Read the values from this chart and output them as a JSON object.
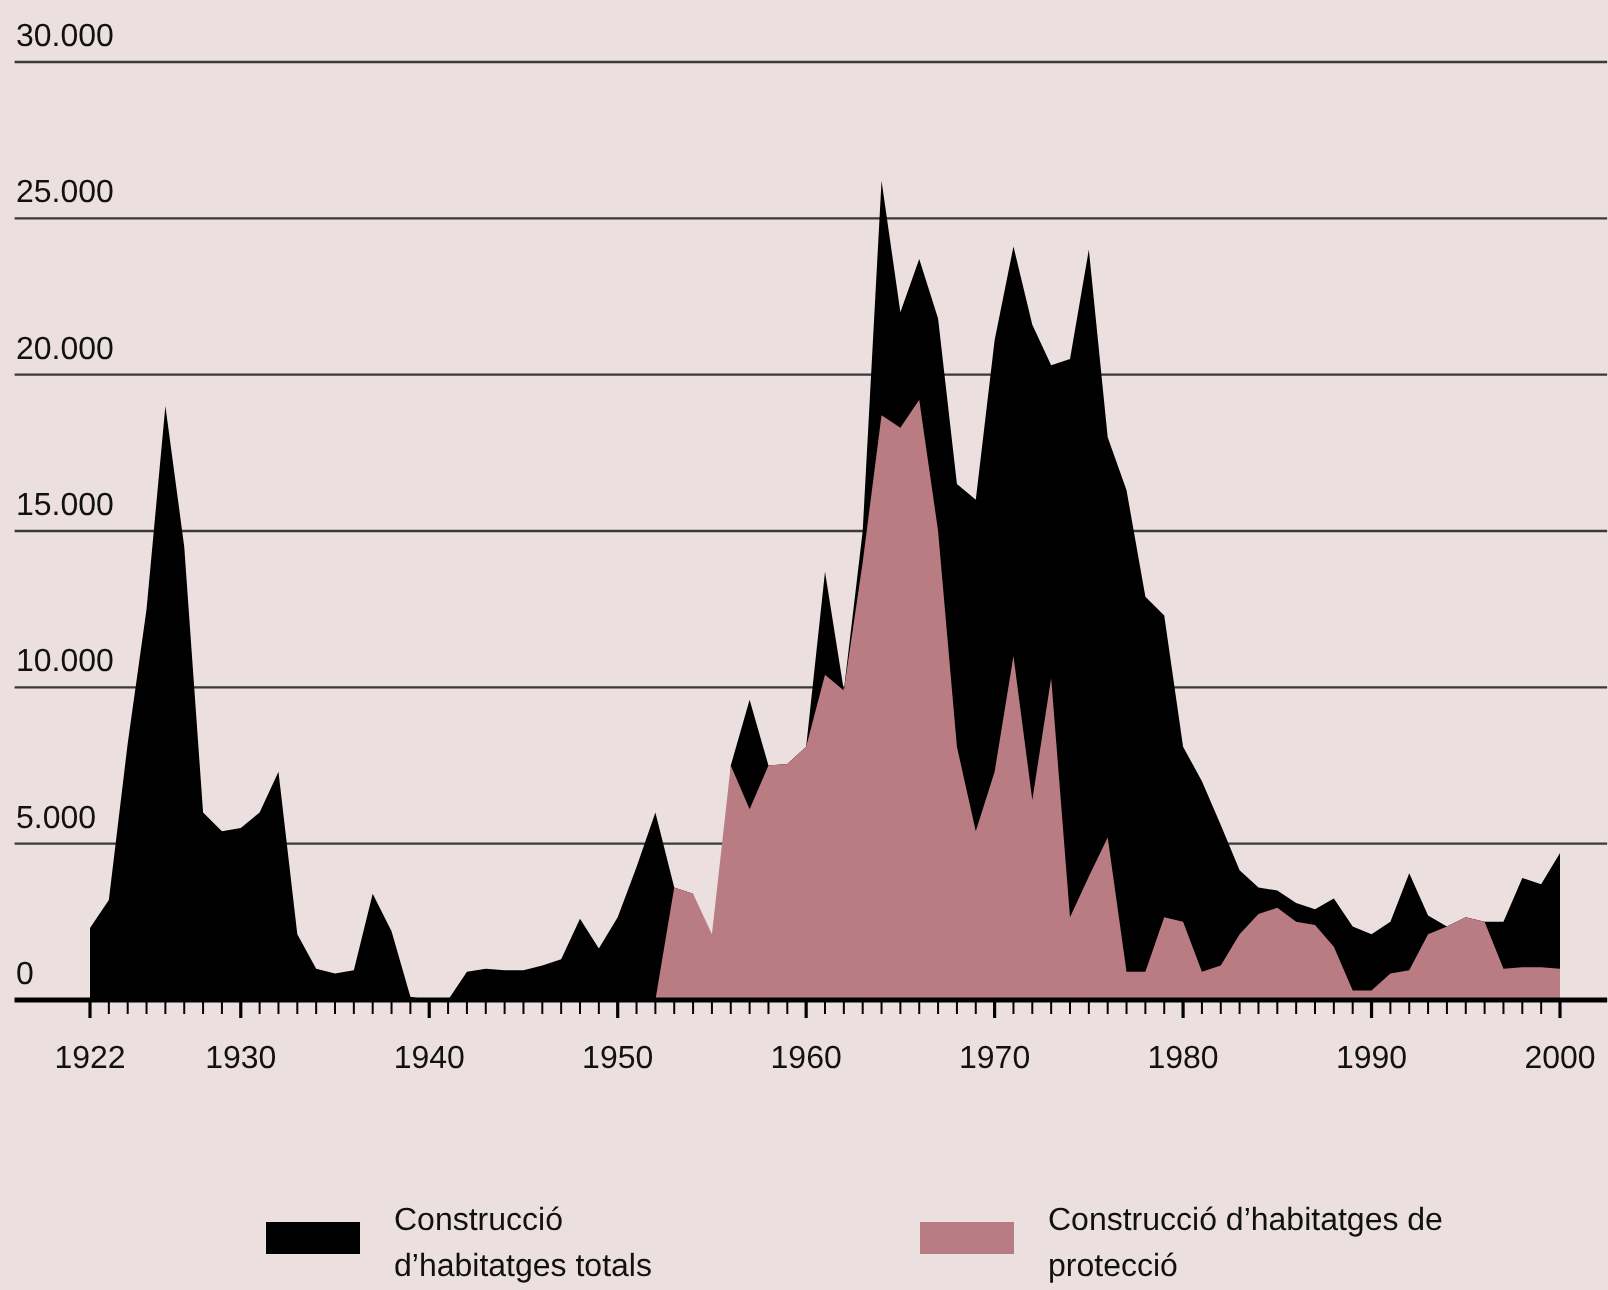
{
  "chart_data": {
    "type": "area",
    "x": [
      1922,
      1923,
      1924,
      1925,
      1926,
      1927,
      1928,
      1929,
      1930,
      1931,
      1932,
      1933,
      1934,
      1935,
      1936,
      1937,
      1938,
      1939,
      1940,
      1941,
      1942,
      1943,
      1944,
      1945,
      1946,
      1947,
      1948,
      1949,
      1950,
      1951,
      1952,
      1953,
      1954,
      1955,
      1956,
      1957,
      1958,
      1959,
      1960,
      1961,
      1962,
      1963,
      1964,
      1965,
      1966,
      1967,
      1968,
      1969,
      1970,
      1971,
      1972,
      1973,
      1974,
      1975,
      1976,
      1977,
      1978,
      1979,
      1980,
      1981,
      1982,
      1983,
      1984,
      1985,
      1986,
      1987,
      1988,
      1989,
      1990,
      1991,
      1992,
      1993,
      1994,
      1995,
      1996,
      1997,
      1998,
      1999,
      2000
    ],
    "series": [
      {
        "name": "Construcció d’habitatges totals",
        "color": "#000000",
        "values": [
          2300,
          3200,
          8200,
          12500,
          19000,
          14500,
          6000,
          5400,
          5500,
          6000,
          7300,
          2100,
          1000,
          850,
          950,
          3400,
          2200,
          100,
          0,
          0,
          900,
          1000,
          950,
          950,
          1100,
          1300,
          2600,
          1650,
          2650,
          4250,
          6000,
          3600,
          3400,
          null,
          7500,
          9600,
          7500,
          7550,
          8100,
          13700,
          9900,
          15000,
          26200,
          22000,
          23700,
          21800,
          16500,
          16000,
          21100,
          24100,
          21600,
          20300,
          20500,
          24000,
          18000,
          16300,
          12900,
          12300,
          8100,
          7000,
          5600,
          4150,
          3600,
          3500,
          3100,
          2900,
          3250,
          2350,
          2100,
          2500,
          4050,
          2700,
          2350,
          2650,
          2500,
          2500,
          3900,
          3700,
          4700
        ]
      },
      {
        "name": "Construcció d’habitatges de protecció",
        "color": "#b97c83",
        "values": [
          null,
          null,
          null,
          null,
          null,
          null,
          null,
          null,
          null,
          null,
          null,
          null,
          null,
          null,
          null,
          null,
          null,
          null,
          null,
          null,
          null,
          null,
          null,
          null,
          null,
          null,
          null,
          null,
          null,
          null,
          0,
          3600,
          3400,
          2100,
          7500,
          6100,
          7500,
          7550,
          8100,
          10400,
          9900,
          14000,
          18700,
          18300,
          19200,
          15000,
          8100,
          5400,
          7300,
          11000,
          6400,
          10300,
          2650,
          3950,
          5200,
          900,
          900,
          2650,
          2500,
          900,
          1100,
          2100,
          2750,
          2950,
          2500,
          2400,
          1700,
          300,
          300,
          850,
          950,
          2100,
          2350,
          2650,
          2500,
          1000,
          1050,
          1050,
          1000
        ]
      }
    ],
    "xlim": [
      1918,
      2002.5
    ],
    "xticks": [
      1922,
      {
        "value": 1923,
        "label": null
      },
      {
        "value": 1924,
        "label": null
      },
      {
        "value": 1925,
        "label": null
      },
      {
        "value": 1926,
        "label": null
      },
      {
        "value": 1927,
        "label": null
      },
      {
        "value": 1928,
        "label": null
      },
      {
        "value": 1929,
        "label": null
      },
      1930,
      {
        "value": 1931,
        "label": null
      },
      {
        "value": 1932,
        "label": null
      },
      {
        "value": 1933,
        "label": null
      },
      {
        "value": 1934,
        "label": null
      },
      {
        "value": 1935,
        "label": null
      },
      {
        "value": 1936,
        "label": null
      },
      {
        "value": 1937,
        "label": null
      },
      {
        "value": 1938,
        "label": null
      },
      {
        "value": 1939,
        "label": null
      },
      1940,
      {
        "value": 1941,
        "label": null
      },
      {
        "value": 1942,
        "label": null
      },
      {
        "value": 1943,
        "label": null
      },
      {
        "value": 1944,
        "label": null
      },
      {
        "value": 1945,
        "label": null
      },
      {
        "value": 1946,
        "label": null
      },
      {
        "value": 1947,
        "label": null
      },
      {
        "value": 1948,
        "label": null
      },
      {
        "value": 1949,
        "label": null
      },
      1950,
      {
        "value": 1951,
        "label": null
      },
      {
        "value": 1952,
        "label": null
      },
      {
        "value": 1953,
        "label": null
      },
      {
        "value": 1954,
        "label": null
      },
      {
        "value": 1955,
        "label": null
      },
      {
        "value": 1956,
        "label": null
      },
      {
        "value": 1957,
        "label": null
      },
      {
        "value": 1958,
        "label": null
      },
      {
        "value": 1959,
        "label": null
      },
      1960,
      {
        "value": 1961,
        "label": null
      },
      {
        "value": 1962,
        "label": null
      },
      {
        "value": 1963,
        "label": null
      },
      {
        "value": 1964,
        "label": null
      },
      {
        "value": 1965,
        "label": null
      },
      {
        "value": 1966,
        "label": null
      },
      {
        "value": 1967,
        "label": null
      },
      {
        "value": 1968,
        "label": null
      },
      {
        "value": 1969,
        "label": null
      },
      1970,
      {
        "value": 1971,
        "label": null
      },
      {
        "value": 1972,
        "label": null
      },
      {
        "value": 1973,
        "label": null
      },
      {
        "value": 1974,
        "label": null
      },
      {
        "value": 1975,
        "label": null
      },
      {
        "value": 1976,
        "label": null
      },
      {
        "value": 1977,
        "label": null
      },
      {
        "value": 1978,
        "label": null
      },
      {
        "value": 1979,
        "label": null
      },
      1980,
      {
        "value": 1981,
        "label": null
      },
      {
        "value": 1982,
        "label": null
      },
      {
        "value": 1983,
        "label": null
      },
      {
        "value": 1984,
        "label": null
      },
      {
        "value": 1985,
        "label": null
      },
      {
        "value": 1986,
        "label": null
      },
      {
        "value": 1987,
        "label": null
      },
      {
        "value": 1988,
        "label": null
      },
      {
        "value": 1989,
        "label": null
      },
      1990,
      {
        "value": 1991,
        "label": null
      },
      {
        "value": 1992,
        "label": null
      },
      {
        "value": 1993,
        "label": null
      },
      {
        "value": 1994,
        "label": null
      },
      {
        "value": 1995,
        "label": null
      },
      {
        "value": 1996,
        "label": null
      },
      {
        "value": 1997,
        "label": null
      },
      {
        "value": 1998,
        "label": null
      },
      {
        "value": 1999,
        "label": null
      },
      2000
    ],
    "ylim": [
      0,
      30000
    ],
    "yticks": [
      0,
      {
        "value": 5000,
        "label": "5.000"
      },
      {
        "value": 10000,
        "label": "10.000"
      },
      {
        "value": 15000,
        "label": "15.000"
      },
      {
        "value": 20000,
        "label": "20.000"
      },
      {
        "value": 25000,
        "label": "25.000"
      },
      {
        "value": 30000,
        "label": "30.000"
      }
    ],
    "grid": "y",
    "legend": "bottom"
  }
}
